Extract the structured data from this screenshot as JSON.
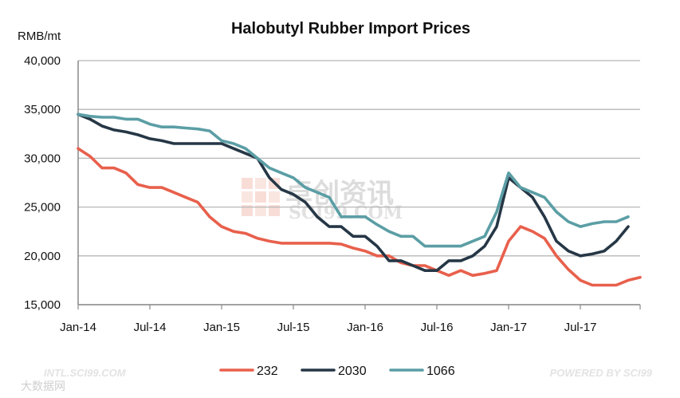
{
  "chart_data": {
    "type": "line",
    "title": "Halobutyl Rubber Import Prices",
    "ylabel": "RMB/mt",
    "ylim": [
      15000,
      40000
    ],
    "yticks": [
      15000,
      20000,
      25000,
      30000,
      35000,
      40000
    ],
    "ytick_labels": [
      "15,000",
      "20,000",
      "25,000",
      "30,000",
      "35,000",
      "40,000"
    ],
    "x_start": "2014-01",
    "x_end": "2017-12",
    "xtick_labels": [
      "Jan-14",
      "Jul-14",
      "Jan-15",
      "Jul-15",
      "Jan-16",
      "Jul-16",
      "Jan-17",
      "Jul-17"
    ],
    "grid": "horizontal",
    "legend": "bottom",
    "series": [
      {
        "name": "232",
        "color": "#e8604c",
        "values": [
          31000,
          30200,
          29000,
          29000,
          28500,
          27300,
          27000,
          27000,
          26500,
          26000,
          25500,
          24000,
          23000,
          22500,
          22300,
          21800,
          21500,
          21300,
          21300,
          21300,
          21300,
          21300,
          21200,
          20800,
          20500,
          20000,
          20000,
          19300,
          19000,
          19000,
          18500,
          18000,
          18500,
          18000,
          18200,
          18500,
          21500,
          23000,
          22500,
          21800,
          20000,
          18600,
          17500,
          17000,
          17000,
          17000,
          17500,
          17800
        ]
      },
      {
        "name": "2030",
        "color": "#263746",
        "values": [
          34500,
          34000,
          33300,
          32900,
          32700,
          32400,
          32000,
          31800,
          31500,
          31500,
          31500,
          31500,
          31500,
          31000,
          30500,
          30000,
          28000,
          26800,
          26300,
          25500,
          24000,
          23000,
          23000,
          22000,
          22000,
          21000,
          19500,
          19500,
          19000,
          18500,
          18500,
          19500,
          19500,
          20000,
          21000,
          23000,
          28000,
          27000,
          26000,
          24000,
          21500,
          20500,
          20000,
          20200,
          20500,
          21500,
          23000
        ]
      },
      {
        "name": "1066",
        "color": "#5b9ea5",
        "values": [
          34500,
          34300,
          34200,
          34200,
          34000,
          34000,
          33500,
          33200,
          33200,
          33100,
          33000,
          32800,
          31800,
          31500,
          31000,
          30000,
          29000,
          28500,
          28000,
          27000,
          26500,
          26000,
          24000,
          24000,
          24000,
          23200,
          22500,
          22000,
          22000,
          21000,
          21000,
          21000,
          21000,
          21500,
          22000,
          24500,
          28500,
          27000,
          26500,
          26000,
          24500,
          23500,
          23000,
          23300,
          23500,
          23500,
          24000
        ]
      }
    ]
  },
  "watermark": {
    "chinese": "卓创资讯",
    "english": "SCI99.COM"
  },
  "footer": {
    "left_url": "INTL.SCI99.COM",
    "right_text": "POWERED BY SCI99",
    "corner_text": "大数据网"
  }
}
